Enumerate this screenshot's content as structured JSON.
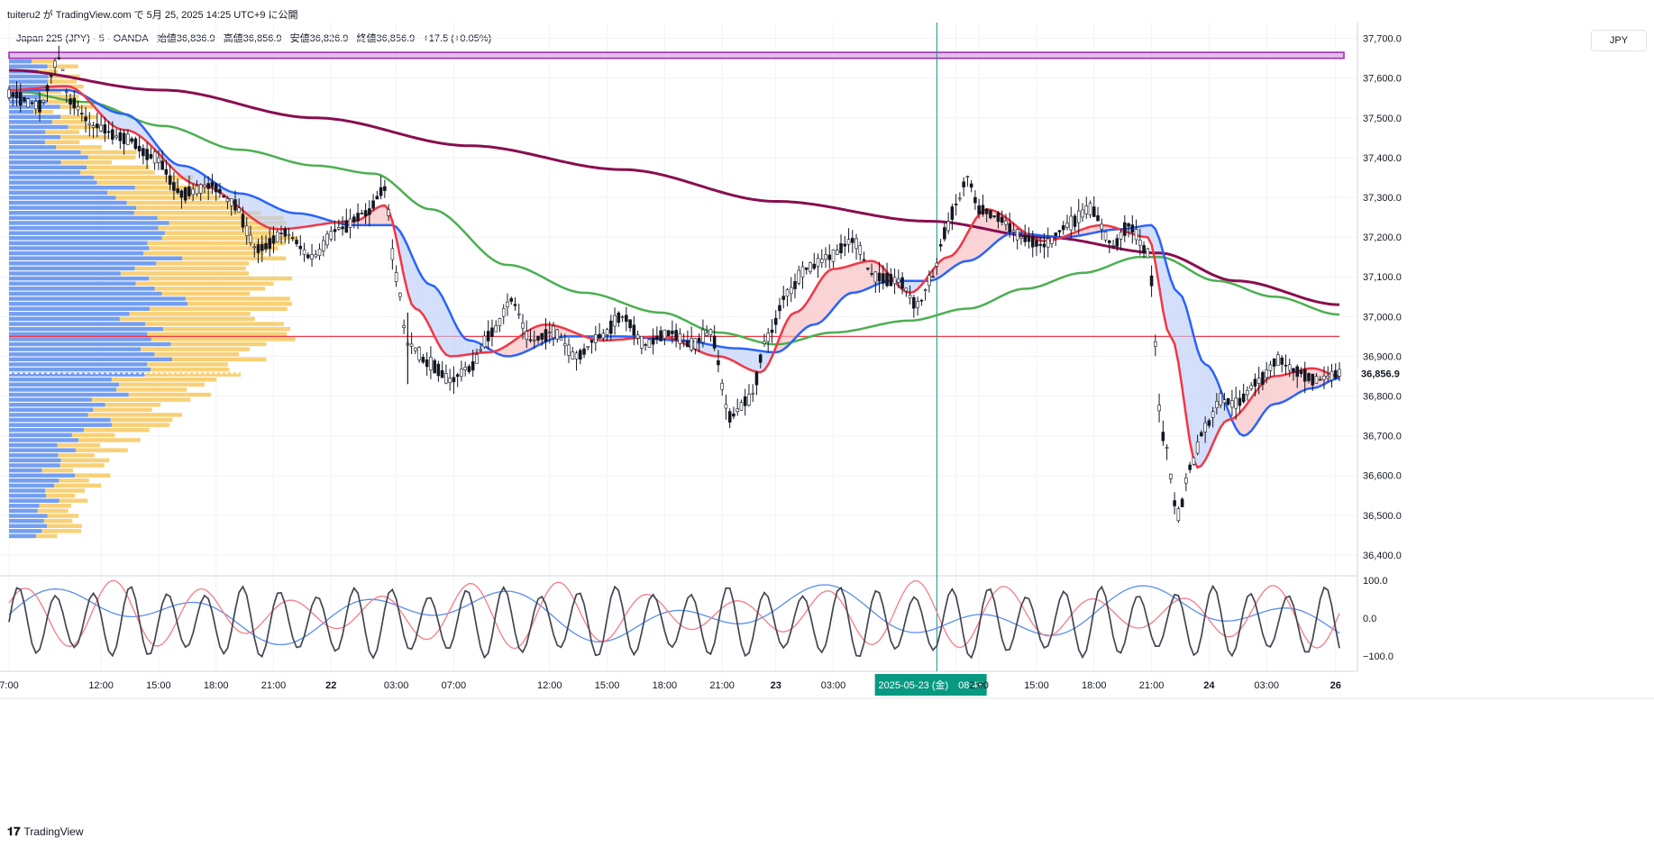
{
  "caption": "tuiteru2 が TradingView.com で 5月 25, 2025 14:25 UTC+9 に公開",
  "legend": {
    "symbol": "Japan 225 (JPY) · 5 · OANDA",
    "open": "始値36,836.9",
    "high": "高値36,856.9",
    "low": "安値36,826.9",
    "close": "終値36,856.9",
    "change": "+17.5 (+0.05%)"
  },
  "currency": "JPY",
  "footer_brand": "TradingView",
  "colors": {
    "candle": "#131722",
    "ema_fast": "#f23645",
    "ema_mid": "#2962ff",
    "ema_slow": "#4caf50",
    "ema_long": "#880e4f",
    "hline": "#f23645",
    "zone": "#9c27b0",
    "vp_up": "#5b8def",
    "vp_down": "#f7c85e",
    "cursor": "#089981"
  },
  "chart_data": [
    {
      "type": "line",
      "name": "price",
      "y_axis_ticks": [
        "37,700.0",
        "37,600.0",
        "37,500.0",
        "37,400.0",
        "37,300.0",
        "37,200.0",
        "37,100.0",
        "37,000.0",
        "36,900.0",
        "36,800.0",
        "36,700.0",
        "36,600.0",
        "36,500.0",
        "36,400.0"
      ],
      "y_tick_values": [
        37700,
        37600,
        37500,
        37400,
        37300,
        37200,
        37100,
        37000,
        36900,
        36800,
        36700,
        36600,
        36500,
        36400
      ],
      "ylim": [
        36350,
        37740
      ],
      "last_price_label": "36,856.9",
      "x_ticks": [
        "7:00",
        "12:00",
        "15:00",
        "18:00",
        "21:00",
        "22",
        "03:00",
        "07:00",
        "12:00",
        "15:00",
        "18:00",
        "21:00",
        "23",
        "03:00",
        "2025-05-23 (金)　08:45",
        "2:00",
        "15:00",
        "18:00",
        "21:00",
        "24",
        "03:00",
        "26"
      ],
      "x_tick_index": [
        0,
        24,
        39,
        54,
        69,
        84,
        101,
        116,
        141,
        156,
        171,
        186,
        200,
        215,
        247,
        253,
        268,
        283,
        298,
        313,
        328,
        346
      ],
      "n_bars": 348,
      "price_anchors": [
        [
          0,
          37560
        ],
        [
          8,
          37530
        ],
        [
          13,
          37650
        ],
        [
          16,
          37540
        ],
        [
          22,
          37480
        ],
        [
          30,
          37450
        ],
        [
          38,
          37400
        ],
        [
          45,
          37310
        ],
        [
          53,
          37330
        ],
        [
          58,
          37290
        ],
        [
          65,
          37170
        ],
        [
          72,
          37210
        ],
        [
          79,
          37150
        ],
        [
          86,
          37220
        ],
        [
          93,
          37260
        ],
        [
          98,
          37320
        ],
        [
          101,
          37100
        ],
        [
          104,
          36930
        ],
        [
          110,
          36880
        ],
        [
          115,
          36840
        ],
        [
          120,
          36870
        ],
        [
          126,
          36960
        ],
        [
          131,
          37040
        ],
        [
          136,
          36940
        ],
        [
          142,
          36960
        ],
        [
          148,
          36900
        ],
        [
          154,
          36950
        ],
        [
          160,
          37000
        ],
        [
          166,
          36930
        ],
        [
          172,
          36960
        ],
        [
          178,
          36930
        ],
        [
          183,
          36960
        ],
        [
          188,
          36750
        ],
        [
          193,
          36790
        ],
        [
          198,
          36950
        ],
        [
          203,
          37060
        ],
        [
          208,
          37120
        ],
        [
          214,
          37150
        ],
        [
          220,
          37190
        ],
        [
          226,
          37100
        ],
        [
          232,
          37090
        ],
        [
          237,
          37030
        ],
        [
          241,
          37100
        ],
        [
          244,
          37210
        ],
        [
          247,
          37280
        ],
        [
          250,
          37350
        ],
        [
          253,
          37270
        ],
        [
          258,
          37250
        ],
        [
          264,
          37200
        ],
        [
          270,
          37180
        ],
        [
          276,
          37230
        ],
        [
          282,
          37270
        ],
        [
          288,
          37180
        ],
        [
          292,
          37230
        ],
        [
          297,
          37160
        ],
        [
          301,
          36700
        ],
        [
          305,
          36500
        ],
        [
          308,
          36620
        ],
        [
          312,
          36720
        ],
        [
          316,
          36790
        ],
        [
          320,
          36780
        ],
        [
          326,
          36840
        ],
        [
          331,
          36890
        ],
        [
          336,
          36860
        ],
        [
          341,
          36840
        ],
        [
          347,
          36857
        ]
      ],
      "ema_fast_anchors": [
        [
          0,
          37570
        ],
        [
          15,
          37580
        ],
        [
          30,
          37470
        ],
        [
          50,
          37330
        ],
        [
          70,
          37220
        ],
        [
          90,
          37240
        ],
        [
          98,
          37280
        ],
        [
          106,
          37020
        ],
        [
          115,
          36900
        ],
        [
          125,
          36910
        ],
        [
          140,
          36980
        ],
        [
          155,
          36940
        ],
        [
          170,
          36950
        ],
        [
          185,
          36900
        ],
        [
          196,
          36860
        ],
        [
          205,
          37010
        ],
        [
          215,
          37120
        ],
        [
          225,
          37140
        ],
        [
          235,
          37060
        ],
        [
          245,
          37150
        ],
        [
          255,
          37270
        ],
        [
          270,
          37190
        ],
        [
          285,
          37230
        ],
        [
          297,
          37200
        ],
        [
          303,
          36950
        ],
        [
          310,
          36620
        ],
        [
          318,
          36740
        ],
        [
          330,
          36850
        ],
        [
          340,
          36870
        ],
        [
          347,
          36850
        ]
      ],
      "ema_mid_anchors": [
        [
          0,
          37570
        ],
        [
          15,
          37570
        ],
        [
          30,
          37510
        ],
        [
          45,
          37380
        ],
        [
          60,
          37310
        ],
        [
          75,
          37260
        ],
        [
          90,
          37230
        ],
        [
          100,
          37230
        ],
        [
          110,
          37080
        ],
        [
          120,
          36940
        ],
        [
          130,
          36900
        ],
        [
          145,
          36950
        ],
        [
          160,
          36950
        ],
        [
          175,
          36940
        ],
        [
          190,
          36920
        ],
        [
          200,
          36910
        ],
        [
          210,
          36980
        ],
        [
          220,
          37060
        ],
        [
          230,
          37090
        ],
        [
          240,
          37090
        ],
        [
          250,
          37140
        ],
        [
          262,
          37210
        ],
        [
          275,
          37200
        ],
        [
          290,
          37220
        ],
        [
          298,
          37230
        ],
        [
          305,
          37060
        ],
        [
          312,
          36880
        ],
        [
          322,
          36700
        ],
        [
          330,
          36780
        ],
        [
          340,
          36820
        ],
        [
          347,
          36845
        ]
      ],
      "ema_slow_anchors": [
        [
          0,
          37570
        ],
        [
          20,
          37540
        ],
        [
          40,
          37480
        ],
        [
          60,
          37420
        ],
        [
          80,
          37380
        ],
        [
          95,
          37360
        ],
        [
          110,
          37270
        ],
        [
          130,
          37130
        ],
        [
          150,
          37060
        ],
        [
          170,
          37010
        ],
        [
          185,
          36960
        ],
        [
          200,
          36930
        ],
        [
          215,
          36960
        ],
        [
          235,
          36990
        ],
        [
          250,
          37020
        ],
        [
          265,
          37070
        ],
        [
          280,
          37110
        ],
        [
          295,
          37150
        ],
        [
          300,
          37150
        ],
        [
          315,
          37090
        ],
        [
          330,
          37050
        ],
        [
          347,
          37005
        ]
      ],
      "ema_long_anchors": [
        [
          0,
          37620
        ],
        [
          40,
          37570
        ],
        [
          80,
          37500
        ],
        [
          120,
          37430
        ],
        [
          160,
          37370
        ],
        [
          200,
          37290
        ],
        [
          240,
          37240
        ],
        [
          270,
          37200
        ],
        [
          300,
          37160
        ],
        [
          320,
          37090
        ],
        [
          347,
          37030
        ]
      ],
      "horizontal_line": 36950,
      "zone": [
        37650,
        37665
      ],
      "cursor_index": 242
    },
    {
      "type": "line",
      "name": "oscillator",
      "y_axis_ticks": [
        "100.0",
        "0.0",
        "−100.0"
      ],
      "y_tick_values": [
        100,
        0,
        -100
      ],
      "ylim": [
        -140,
        110
      ]
    }
  ]
}
